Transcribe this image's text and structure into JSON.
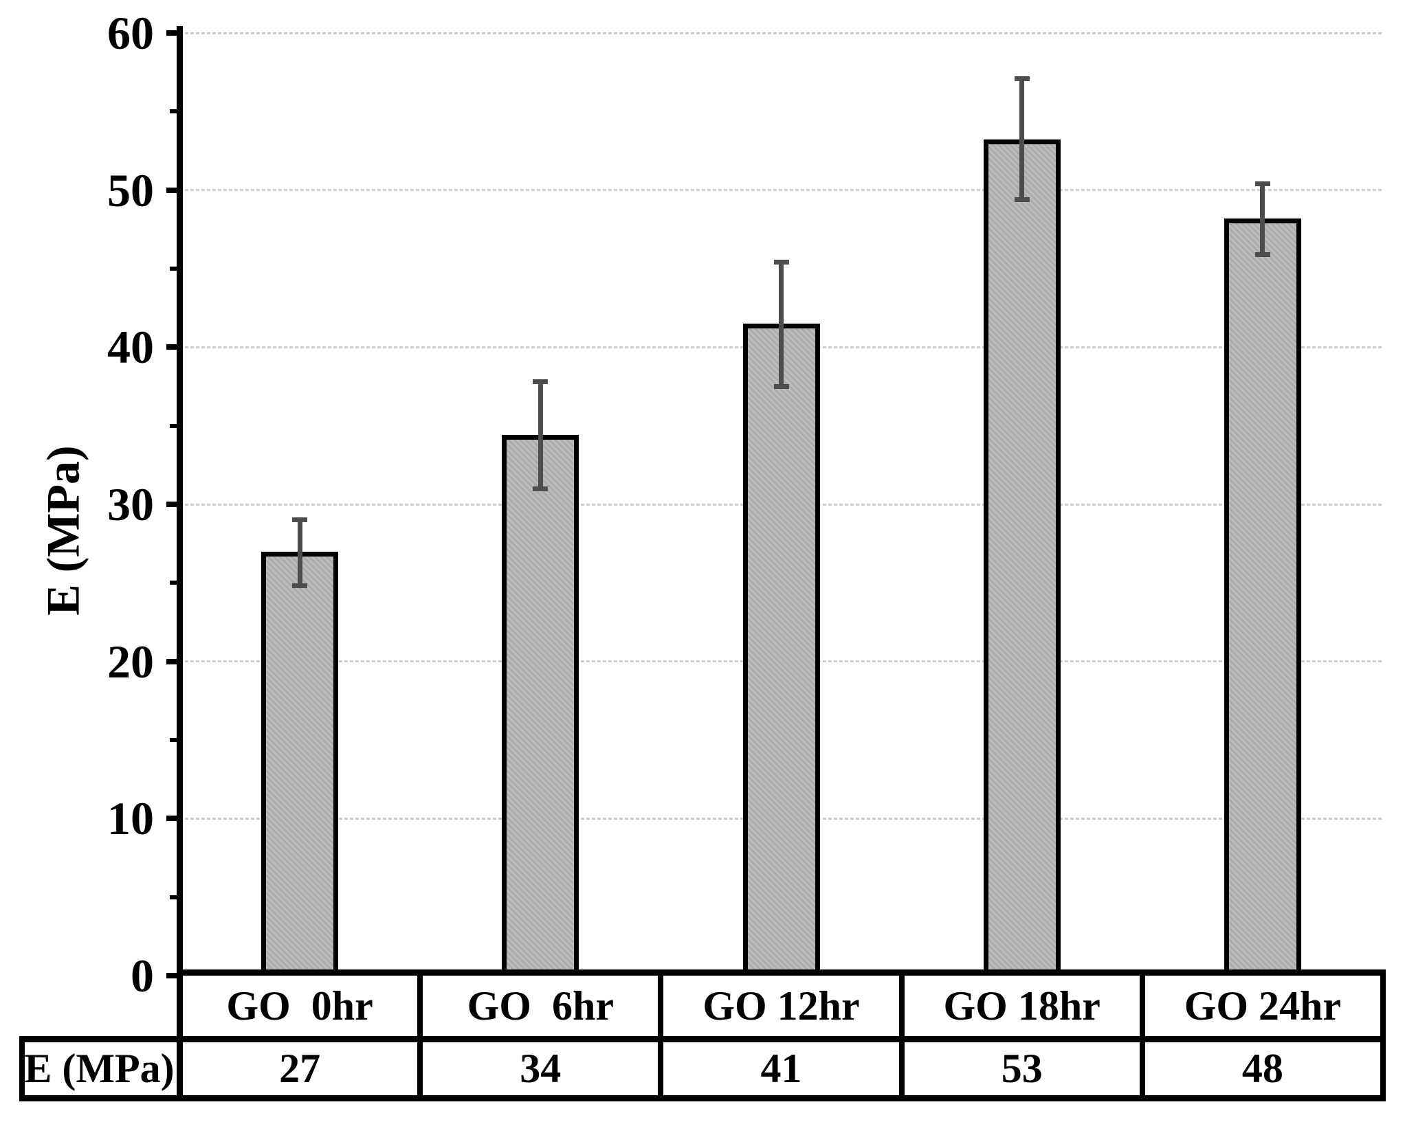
{
  "chart_data": {
    "type": "bar",
    "title": "",
    "xlabel": "",
    "ylabel": "E (MPa)",
    "categories": [
      "GO  0hr",
      "GO  6hr",
      "GO 12hr",
      "GO 18hr",
      "GO 24hr"
    ],
    "values": [
      27,
      34,
      41,
      53,
      48
    ],
    "bar_top_values": [
      27,
      34.4,
      41.5,
      53.2,
      48.2
    ],
    "error_low": [
      24.8,
      31.0,
      37.5,
      49.4,
      45.9
    ],
    "error_high": [
      29.0,
      37.8,
      45.4,
      57.1,
      50.4
    ],
    "ylim": [
      0,
      60
    ],
    "yticks": [
      0,
      10,
      20,
      30,
      40,
      50,
      60
    ],
    "minor_yticks": [
      5,
      15,
      25,
      35,
      45,
      55
    ],
    "grid": true,
    "legend_position": "none",
    "value_row_header": "E (MPa)",
    "colors": {
      "bar_fill": "#b4b4b4",
      "bar_border": "#000000",
      "error_bar": "#4d4d4d",
      "gridline": "#cccccc",
      "axis": "#000000",
      "text": "#000000"
    }
  }
}
